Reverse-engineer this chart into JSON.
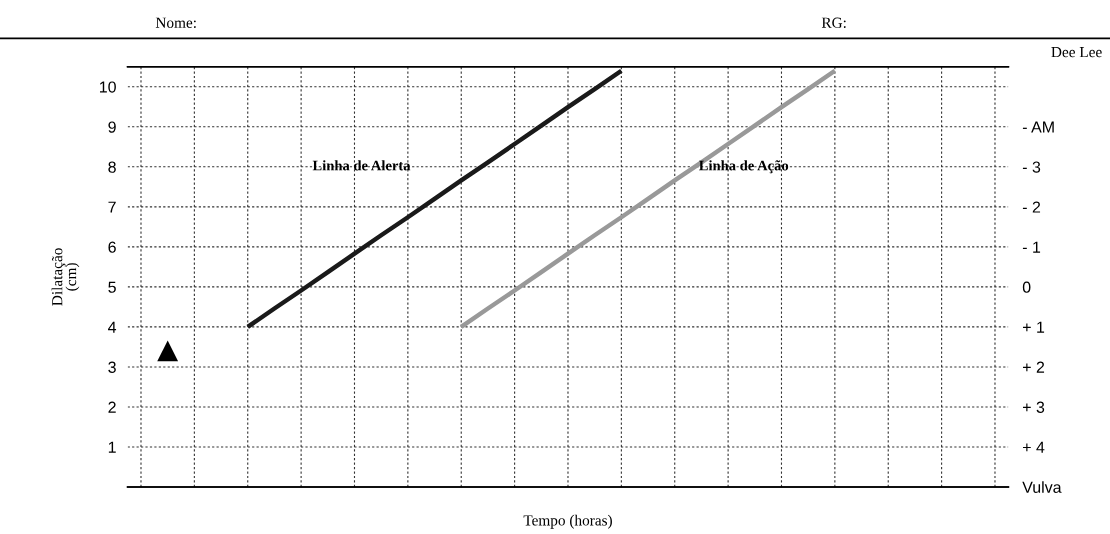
{
  "chart_data": {
    "type": "line",
    "xlabel": "Tempo (horas)",
    "ylabel": "Dilatação\n(cm)",
    "annotations": [
      "Nome:",
      "RG:",
      "Dee Lee"
    ],
    "categories": [
      null,
      null,
      null,
      null,
      null,
      null,
      null,
      null,
      null,
      null,
      null,
      null,
      null,
      null,
      null,
      null,
      null,
      null,
      null,
      null,
      null,
      null,
      null,
      null,
      null,
      null,
      null,
      null,
      null,
      null,
      null,
      null,
      null
    ],
    "ylim": [
      0,
      10.5
    ],
    "yticks": [
      1,
      2,
      3,
      4,
      5,
      6,
      7,
      8,
      9,
      10
    ],
    "y2lim": [
      5,
      -5.5
    ],
    "y2ticks": [
      {
        "value": 5,
        "label": "Vulva"
      },
      {
        "value": 4,
        "label": "+ 4"
      },
      {
        "value": 3,
        "label": "+ 3"
      },
      {
        "value": 2,
        "label": "+ 2"
      },
      {
        "value": 1,
        "label": "+ 1"
      },
      0,
      {
        "value": -1,
        "label": "- 1"
      },
      {
        "value": -2,
        "label": "- 2"
      },
      {
        "value": -3,
        "label": "- 3"
      },
      {
        "value": -4,
        "label": "- AM"
      }
    ],
    "grid": true,
    "legend": false,
    "series": [
      {
        "name": "Linha de Alerta",
        "color": "#1a1a1a",
        "values": [
          null,
          null,
          null,
          null,
          4,
          4.46,
          4.91,
          5.37,
          5.83,
          6.29,
          6.74,
          7.2,
          7.66,
          8.11,
          8.57,
          9.03,
          9.49,
          9.94,
          10.4,
          null,
          null,
          null,
          null,
          null,
          null,
          null,
          null,
          null,
          null,
          null,
          null,
          null,
          null
        ]
      },
      {
        "name": "Linha de Ação",
        "color": "#999999",
        "values": [
          null,
          null,
          null,
          null,
          null,
          null,
          null,
          null,
          null,
          null,
          null,
          null,
          4,
          4.46,
          4.91,
          5.37,
          5.83,
          6.29,
          6.74,
          7.2,
          7.66,
          8.11,
          8.57,
          9.03,
          9.49,
          9.94,
          10.4,
          null,
          null,
          null,
          null,
          null,
          null
        ]
      },
      {
        "type": "scatter",
        "marker": "triangle",
        "color": "#000000",
        "values": [
          null,
          3.4,
          null,
          null,
          null,
          null,
          null,
          null,
          null,
          null,
          null,
          null,
          null,
          null,
          null,
          null,
          null,
          null,
          null,
          null,
          null,
          null,
          null,
          null,
          null,
          null,
          null,
          null,
          null,
          null,
          null,
          null,
          null
        ]
      }
    ]
  }
}
